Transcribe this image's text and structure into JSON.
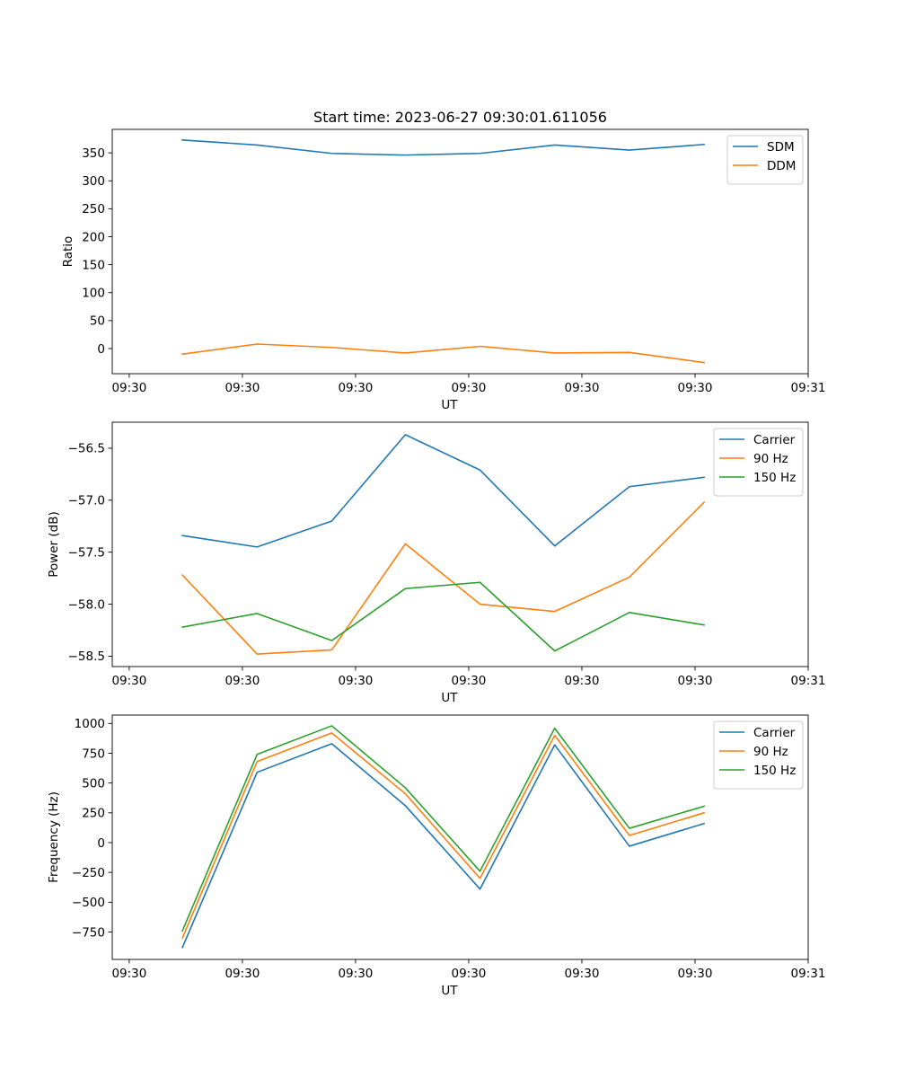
{
  "figure": {
    "title": "Start time: 2023-06-27 09:30:01.611056",
    "background": "#ffffff"
  },
  "chart_data": [
    {
      "type": "line",
      "title": "Start time: 2023-06-27 09:30:01.611056",
      "xlabel": "UT",
      "ylabel": "Ratio",
      "x_tick_labels": [
        "09:30",
        "09:30",
        "09:30",
        "09:30",
        "09:30",
        "09:30",
        "09:31"
      ],
      "x_tick_positions": [
        0,
        1,
        2,
        3,
        4,
        5,
        6
      ],
      "xlim": [
        -0.15,
        6.0
      ],
      "x": [
        0.47,
        1.13,
        1.79,
        2.44,
        3.1,
        3.76,
        4.42,
        5.08
      ],
      "yticks": [
        0,
        50,
        100,
        150,
        200,
        250,
        300,
        350
      ],
      "ylim": [
        -45,
        392
      ],
      "legend_position": "top-right",
      "grid": false,
      "series": [
        {
          "name": "SDM",
          "color": "#1f77b4",
          "values": [
            373,
            364,
            349,
            346,
            349,
            364,
            355,
            365
          ]
        },
        {
          "name": "DDM",
          "color": "#ff7f0e",
          "values": [
            -10,
            8,
            2,
            -8,
            4,
            -8,
            -7,
            -25
          ]
        }
      ]
    },
    {
      "type": "line",
      "xlabel": "UT",
      "ylabel": "Power (dB)",
      "x_tick_labels": [
        "09:30",
        "09:30",
        "09:30",
        "09:30",
        "09:30",
        "09:30",
        "09:31"
      ],
      "x_tick_positions": [
        0,
        1,
        2,
        3,
        4,
        5,
        6
      ],
      "xlim": [
        -0.15,
        6.0
      ],
      "x": [
        0.47,
        1.13,
        1.79,
        2.44,
        3.1,
        3.76,
        4.42,
        5.08
      ],
      "yticks": [
        -58.5,
        -58.0,
        -57.5,
        -57.0,
        -56.5
      ],
      "ytick_labels": [
        "−58.5",
        "−58.0",
        "−57.5",
        "−57.0",
        "−56.5"
      ],
      "ylim": [
        -58.6,
        -56.25
      ],
      "legend_position": "top-right",
      "grid": false,
      "series": [
        {
          "name": "Carrier",
          "color": "#1f77b4",
          "values": [
            -57.34,
            -57.45,
            -57.2,
            -56.37,
            -56.71,
            -57.44,
            -56.87,
            -56.78
          ]
        },
        {
          "name": "90 Hz",
          "color": "#ff7f0e",
          "values": [
            -57.72,
            -58.48,
            -58.44,
            -57.42,
            -58.0,
            -58.07,
            -57.74,
            -57.02
          ]
        },
        {
          "name": "150 Hz",
          "color": "#2ca02c",
          "values": [
            -58.22,
            -58.09,
            -58.35,
            -57.85,
            -57.79,
            -58.45,
            -58.08,
            -58.2
          ]
        }
      ]
    },
    {
      "type": "line",
      "xlabel": "UT",
      "ylabel": "Frequency (Hz)",
      "x_tick_labels": [
        "09:30",
        "09:30",
        "09:30",
        "09:30",
        "09:30",
        "09:30",
        "09:31"
      ],
      "x_tick_positions": [
        0,
        1,
        2,
        3,
        4,
        5,
        6
      ],
      "xlim": [
        -0.15,
        6.0
      ],
      "x": [
        0.47,
        1.13,
        1.79,
        2.44,
        3.1,
        3.76,
        4.42,
        5.08
      ],
      "yticks": [
        -750,
        -500,
        -250,
        0,
        250,
        500,
        750,
        1000
      ],
      "ytick_labels": [
        "−750",
        "−500",
        "−250",
        "0",
        "250",
        "500",
        "750",
        "1000"
      ],
      "ylim": [
        -980,
        1070
      ],
      "legend_position": "top-right",
      "grid": false,
      "series": [
        {
          "name": "Carrier",
          "color": "#1f77b4",
          "values": [
            -880,
            590,
            830,
            310,
            -390,
            820,
            -30,
            160
          ]
        },
        {
          "name": "90 Hz",
          "color": "#ff7f0e",
          "values": [
            -800,
            680,
            920,
            410,
            -300,
            900,
            60,
            250
          ]
        },
        {
          "name": "150 Hz",
          "color": "#2ca02c",
          "values": [
            -740,
            740,
            980,
            460,
            -240,
            960,
            120,
            305
          ]
        }
      ]
    }
  ]
}
